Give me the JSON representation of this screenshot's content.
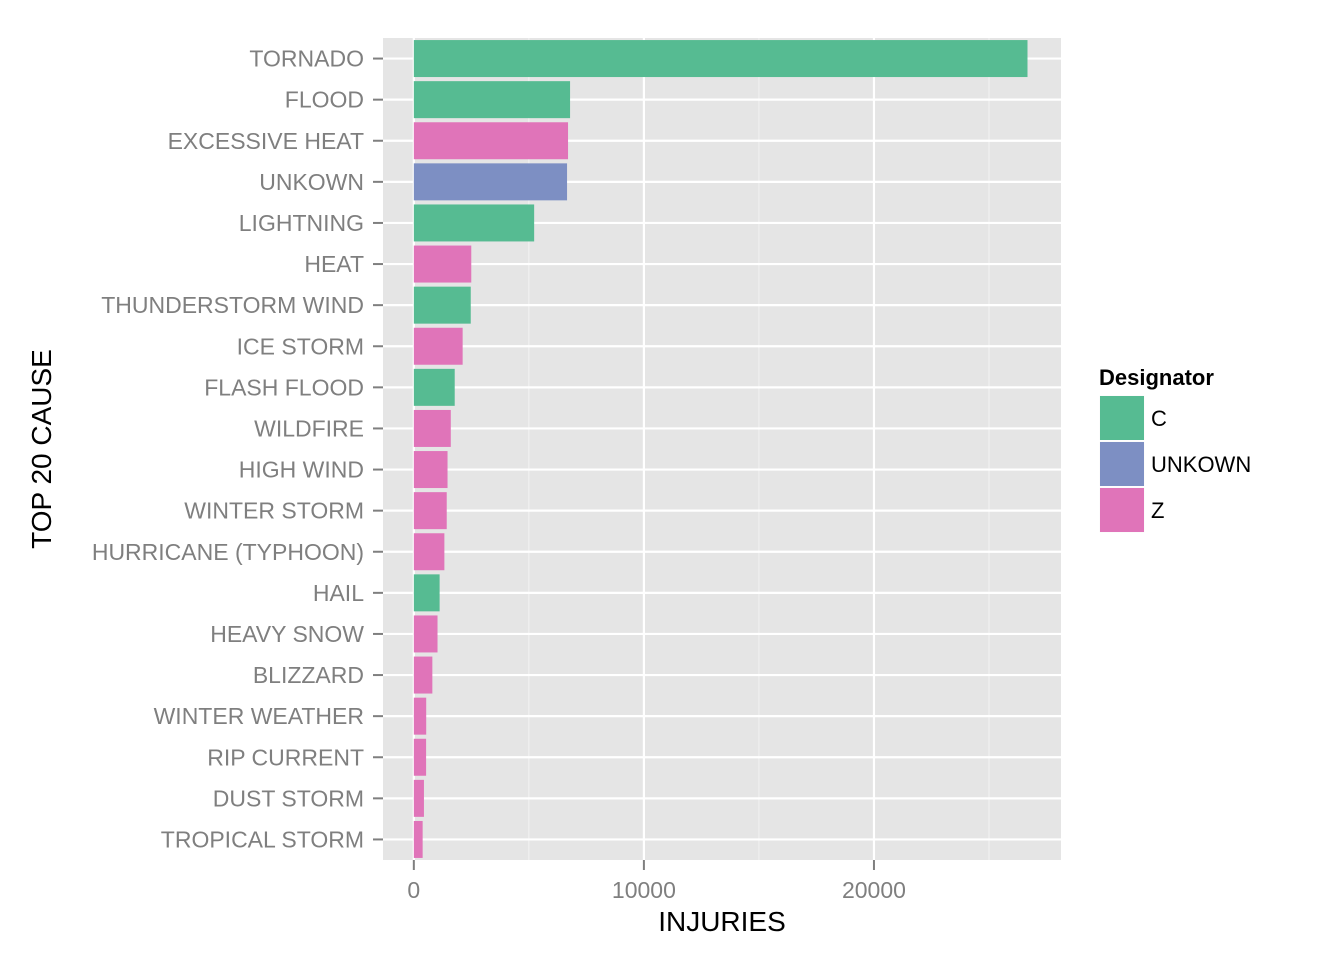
{
  "chart_data": {
    "type": "bar",
    "orientation": "horizontal",
    "xlabel": "INJURIES",
    "ylabel": "TOP 20 CAUSE",
    "xlim": [
      -1340,
      28130
    ],
    "xticks": [
      0,
      10000,
      20000
    ],
    "xtick_labels": [
      "0",
      "10000",
      "20000"
    ],
    "grid": true,
    "legend": {
      "title": "Designator",
      "placement": "right",
      "entries": [
        {
          "label": "C",
          "color": "#56bb92"
        },
        {
          "label": "UNKOWN",
          "color": "#7d8fc3"
        },
        {
          "label": "Z",
          "color": "#e074b9"
        }
      ]
    },
    "categories": [
      "TORNADO",
      "FLOOD",
      "EXCESSIVE HEAT",
      "UNKOWN",
      "LIGHTNING",
      "HEAT",
      "THUNDERSTORM WIND",
      "ICE STORM",
      "FLASH FLOOD",
      "WILDFIRE",
      "HIGH WIND",
      "WINTER STORM",
      "HURRICANE (TYPHOON)",
      "HAIL",
      "HEAVY SNOW",
      "BLIZZARD",
      "WINTER WEATHER",
      "RIP CURRENT",
      "DUST STORM",
      "TROPICAL STORM"
    ],
    "values": [
      26674,
      6791,
      6703,
      6660,
      5230,
      2497,
      2474,
      2122,
      1777,
      1606,
      1465,
      1430,
      1328,
      1121,
      1030,
      805,
      538,
      533,
      440,
      383
    ],
    "designators": [
      "C",
      "C",
      "Z",
      "UNKOWN",
      "C",
      "Z",
      "C",
      "Z",
      "C",
      "Z",
      "Z",
      "Z",
      "Z",
      "C",
      "Z",
      "Z",
      "Z",
      "Z",
      "Z",
      "Z"
    ]
  }
}
